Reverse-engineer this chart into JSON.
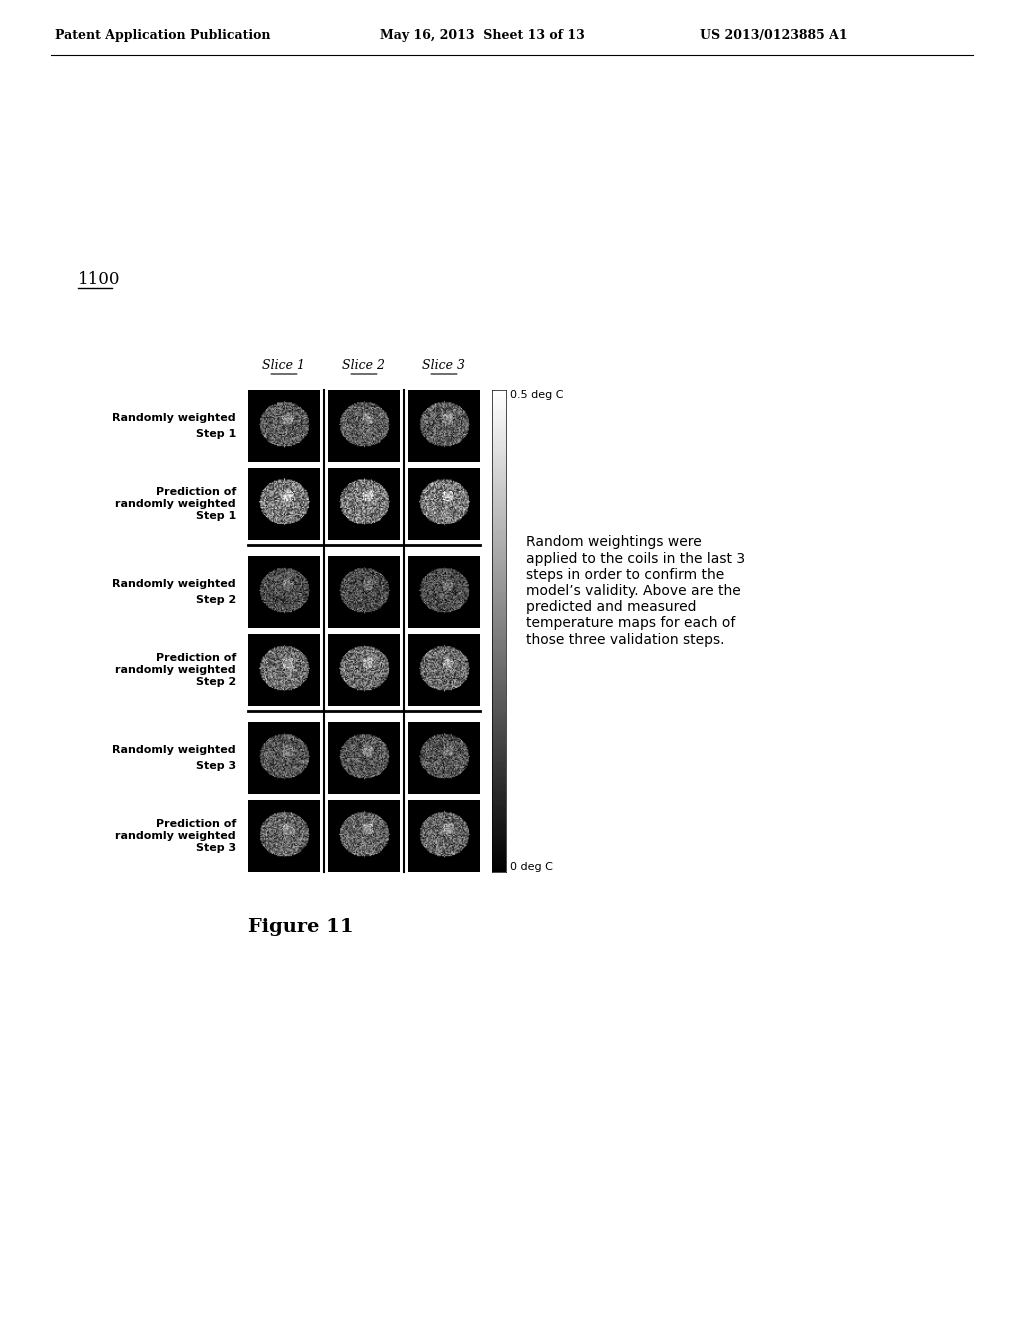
{
  "background_color": "#ffffff",
  "header_left": "Patent Application Publication",
  "header_mid": "May 16, 2013  Sheet 13 of 13",
  "header_right": "US 2013/0123885 A1",
  "figure_label": "1100",
  "figure_caption": "Figure 11",
  "slice_labels": [
    "Slice 1",
    "Slice 2",
    "Slice 3"
  ],
  "row_labels": [
    [
      "Randomly weighted",
      "Step 1"
    ],
    [
      "Prediction of",
      "randomly weighted",
      "Step 1"
    ],
    [
      "Randomly weighted",
      "Step 2"
    ],
    [
      "Prediction of",
      "randomly weighted",
      "Step 2"
    ],
    [
      "Randomly weighted",
      "Step 3"
    ],
    [
      "Prediction of",
      "randomly weighted",
      "Step 3"
    ]
  ],
  "colorbar_top_label": "0.5 deg C",
  "colorbar_bottom_label": "0 deg C",
  "annotation_text": "Random weightings were\napplied to the coils in the last 3\nsteps in order to confirm the\nmodel’s validity. Above are the\npredicted and measured\ntemperature maps for each of\nthose three validation steps.",
  "grid_rows": 6,
  "grid_cols": 3
}
